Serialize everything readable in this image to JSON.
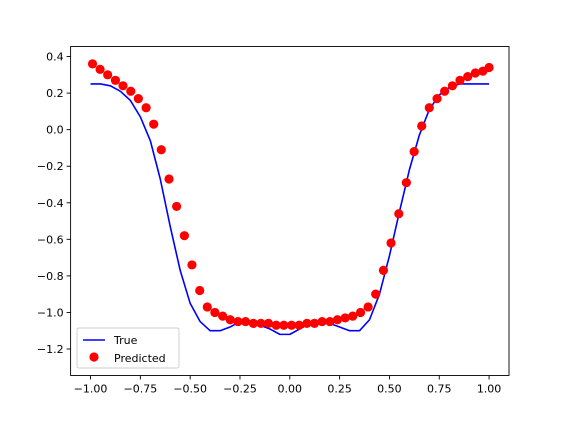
{
  "chart_data": {
    "type": "line",
    "title": "",
    "xlabel": "",
    "ylabel": "",
    "xlim": [
      -1.1,
      1.1
    ],
    "ylim": [
      -1.345,
      0.455
    ],
    "x_ticks": [
      -1.0,
      -0.75,
      -0.5,
      -0.25,
      0.0,
      0.25,
      0.5,
      0.75,
      1.0
    ],
    "y_ticks": [
      0.4,
      0.2,
      0.0,
      -0.2,
      -0.4,
      -0.6,
      -0.8,
      -1.0,
      -1.2
    ],
    "x_tick_labels": [
      "−1.00",
      "−0.75",
      "−0.50",
      "−0.25",
      "0.00",
      "0.25",
      "0.50",
      "0.75",
      "1.00"
    ],
    "y_tick_labels": [
      "0.4",
      "0.2",
      "0.0",
      "−0.2",
      "−0.4",
      "−0.6",
      "−0.8",
      "−1.0",
      "−1.2"
    ],
    "grid": false,
    "legend_position": "lower-left",
    "series": [
      {
        "name": "True",
        "kind": "line",
        "color": "#0000ff",
        "x": [
          -1.0,
          -0.95,
          -0.9,
          -0.85,
          -0.8,
          -0.75,
          -0.7,
          -0.65,
          -0.6,
          -0.55,
          -0.5,
          -0.45,
          -0.4,
          -0.35,
          -0.3,
          -0.25,
          -0.2,
          -0.15,
          -0.1,
          -0.05,
          0.0,
          0.05,
          0.1,
          0.15,
          0.2,
          0.25,
          0.3,
          0.35,
          0.4,
          0.45,
          0.5,
          0.55,
          0.6,
          0.65,
          0.7,
          0.75,
          0.8,
          0.85,
          0.9,
          0.95,
          1.0
        ],
        "y": [
          0.25,
          0.25,
          0.24,
          0.21,
          0.16,
          0.07,
          -0.06,
          -0.27,
          -0.53,
          -0.77,
          -0.95,
          -1.05,
          -1.1,
          -1.1,
          -1.08,
          -1.05,
          -1.05,
          -1.07,
          -1.09,
          -1.12,
          -1.12,
          -1.09,
          -1.06,
          -1.05,
          -1.06,
          -1.08,
          -1.1,
          -1.1,
          -1.04,
          -0.9,
          -0.69,
          -0.45,
          -0.22,
          -0.03,
          0.11,
          0.19,
          0.23,
          0.25,
          0.25,
          0.25,
          0.25
        ]
      },
      {
        "name": "Predicted",
        "kind": "scatter",
        "color": "#ff0000",
        "x": [
          -0.99,
          -0.952,
          -0.914,
          -0.875,
          -0.837,
          -0.798,
          -0.76,
          -0.721,
          -0.683,
          -0.645,
          -0.606,
          -0.568,
          -0.529,
          -0.491,
          -0.452,
          -0.414,
          -0.376,
          -0.337,
          -0.299,
          -0.26,
          -0.222,
          -0.183,
          -0.145,
          -0.107,
          -0.068,
          -0.03,
          0.009,
          0.047,
          0.086,
          0.124,
          0.162,
          0.201,
          0.239,
          0.278,
          0.316,
          0.355,
          0.393,
          0.431,
          0.47,
          0.508,
          0.547,
          0.585,
          0.624,
          0.662,
          0.7,
          0.739,
          0.777,
          0.816,
          0.854,
          0.893,
          0.931,
          0.969,
          1.0
        ],
        "y": [
          0.36,
          0.33,
          0.3,
          0.27,
          0.24,
          0.21,
          0.17,
          0.12,
          0.03,
          -0.11,
          -0.27,
          -0.42,
          -0.58,
          -0.74,
          -0.88,
          -0.97,
          -1.0,
          -1.02,
          -1.04,
          -1.05,
          -1.05,
          -1.06,
          -1.06,
          -1.06,
          -1.07,
          -1.07,
          -1.07,
          -1.07,
          -1.06,
          -1.06,
          -1.05,
          -1.05,
          -1.04,
          -1.03,
          -1.02,
          -1.0,
          -0.97,
          -0.9,
          -0.77,
          -0.62,
          -0.46,
          -0.29,
          -0.12,
          0.02,
          0.12,
          0.17,
          0.21,
          0.24,
          0.27,
          0.29,
          0.31,
          0.32,
          0.34
        ]
      }
    ]
  }
}
